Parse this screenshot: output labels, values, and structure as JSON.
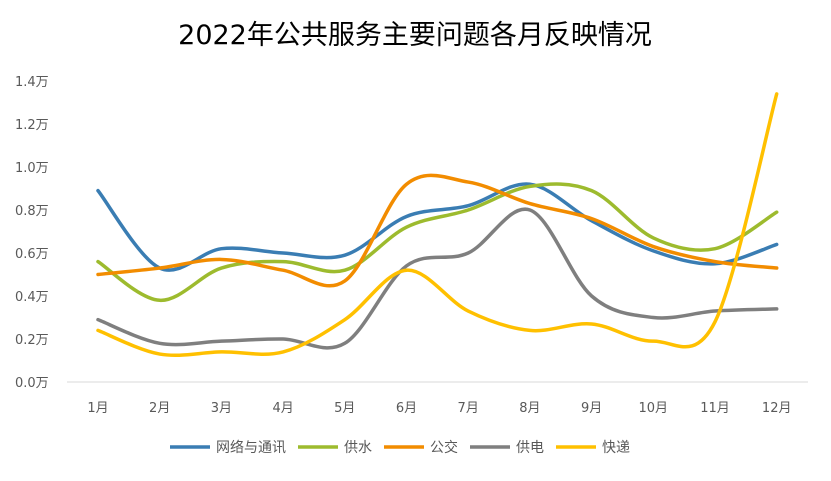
{
  "chart_data": {
    "type": "line",
    "title": "2022年公共服务主要问题各月反映情况",
    "xlabel": "",
    "ylabel": "",
    "categories": [
      "1月",
      "2月",
      "3月",
      "4月",
      "5月",
      "6月",
      "7月",
      "8月",
      "9月",
      "10月",
      "11月",
      "12月"
    ],
    "ylim": [
      0,
      1.4
    ],
    "y_ticks": [
      "0.0万",
      "0.2万",
      "0.4万",
      "0.6万",
      "0.8万",
      "1.0万",
      "1.2万",
      "1.4万"
    ],
    "y_unit": "万",
    "grid": false,
    "legend_position": "bottom",
    "smooth": true,
    "series": [
      {
        "name": "网络与通讯",
        "color": "#3a7db3",
        "values": [
          0.89,
          0.53,
          0.62,
          0.6,
          0.59,
          0.77,
          0.82,
          0.92,
          0.75,
          0.61,
          0.55,
          0.64
        ]
      },
      {
        "name": "供水",
        "color": "#9dbb2e",
        "values": [
          0.56,
          0.38,
          0.53,
          0.56,
          0.52,
          0.72,
          0.8,
          0.91,
          0.89,
          0.67,
          0.62,
          0.79
        ]
      },
      {
        "name": "公交",
        "color": "#f28c00",
        "values": [
          0.5,
          0.53,
          0.57,
          0.52,
          0.47,
          0.92,
          0.93,
          0.83,
          0.76,
          0.63,
          0.56,
          0.53
        ]
      },
      {
        "name": "供电",
        "color": "#7f7f7f",
        "values": [
          0.29,
          0.18,
          0.19,
          0.2,
          0.18,
          0.54,
          0.6,
          0.8,
          0.4,
          0.3,
          0.33,
          0.34
        ]
      },
      {
        "name": "快递",
        "color": "#ffc000",
        "values": [
          0.24,
          0.13,
          0.14,
          0.14,
          0.29,
          0.52,
          0.33,
          0.24,
          0.27,
          0.19,
          0.28,
          1.34
        ]
      }
    ]
  }
}
